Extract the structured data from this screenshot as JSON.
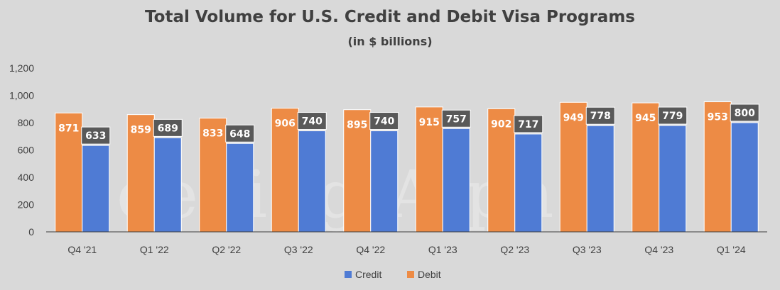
{
  "chart_data": {
    "type": "bar",
    "title": "Total Volume for U.S. Credit and Debit Visa Programs",
    "subtitle": "(in $ billions)",
    "categories": [
      "Q4 '21",
      "Q1 '22",
      "Q2 '22",
      "Q3 '22",
      "Q4 '22",
      "Q1 '23",
      "Q2 '23",
      "Q3 '23",
      "Q4 '23",
      "Q1 '24"
    ],
    "series": [
      {
        "name": "Debit",
        "color": "#ed8b45",
        "values": [
          871,
          859,
          833,
          906,
          895,
          915,
          902,
          949,
          945,
          953
        ]
      },
      {
        "name": "Credit",
        "color": "#4f7bd4",
        "values": [
          633,
          689,
          648,
          740,
          740,
          757,
          717,
          778,
          779,
          800
        ]
      }
    ],
    "ylim": [
      0,
      1200
    ],
    "yticks": [
      "0",
      "200",
      "400",
      "600",
      "800",
      "1,000",
      "1,200"
    ],
    "ytick_values": [
      0,
      200,
      400,
      600,
      800,
      1000,
      1200
    ],
    "grid": false,
    "legend": {
      "position": "bottom",
      "order": [
        "Credit",
        "Debit"
      ]
    },
    "label_box_color": "#595959",
    "watermark": "Seeking Alpha"
  }
}
